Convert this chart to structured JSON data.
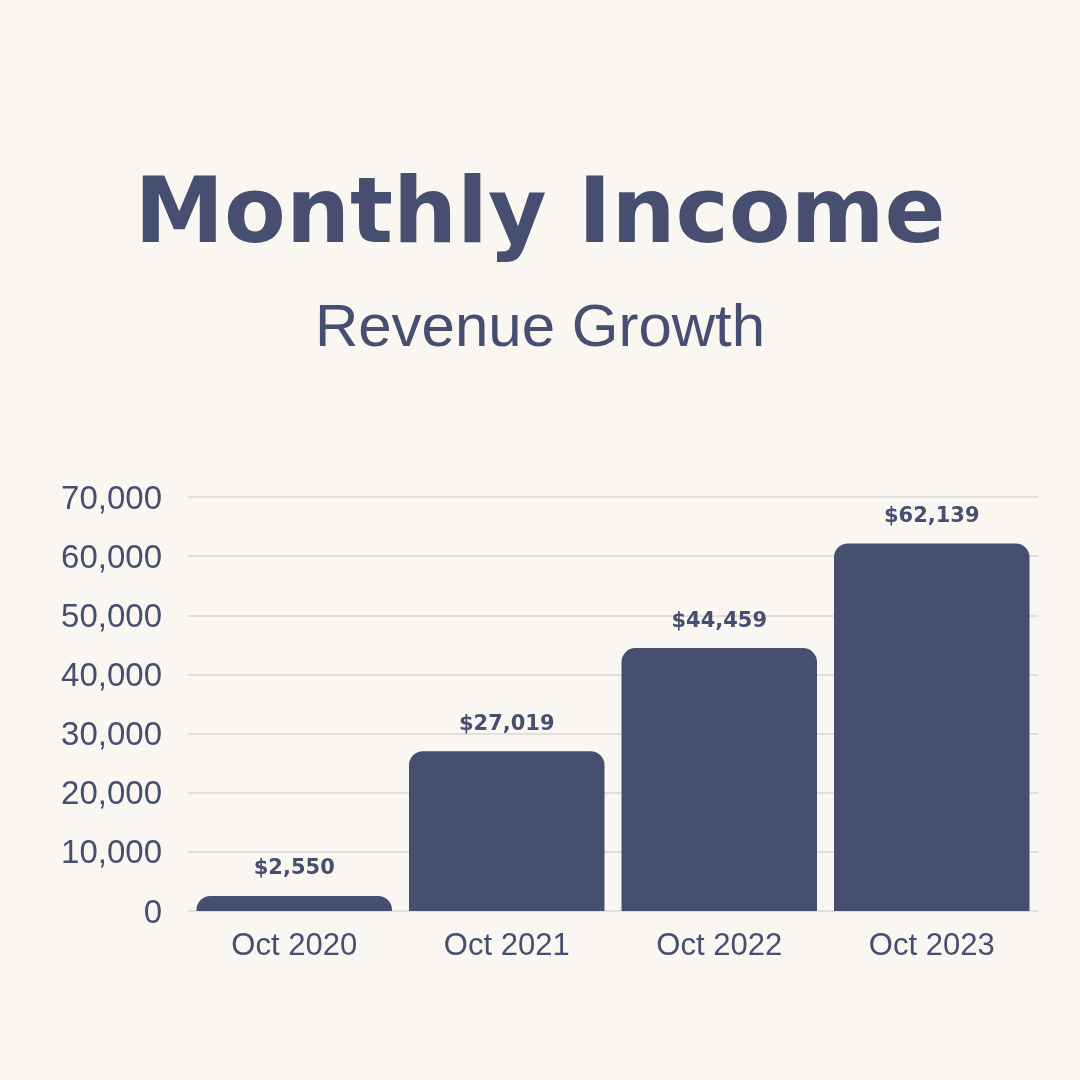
{
  "chart_data": {
    "type": "bar",
    "title": "Monthly Income",
    "subtitle": "Revenue Growth",
    "categories": [
      "Oct 2020",
      "Oct 2021",
      "Oct 2022",
      "Oct 2023"
    ],
    "values": [
      2550,
      27019,
      44459,
      62139
    ],
    "value_labels": [
      "$2,550",
      "$27,019",
      "$44,459",
      "$62,139"
    ],
    "color": "#474f70",
    "ylim": [
      0,
      70000
    ],
    "yticks": [
      {
        "value": 0,
        "label": "0"
      },
      {
        "value": 10000,
        "label": "10,000"
      },
      {
        "value": 20000,
        "label": "20,000"
      },
      {
        "value": 30000,
        "label": "30,000"
      },
      {
        "value": 40000,
        "label": "40,000"
      },
      {
        "value": 50000,
        "label": "50,000"
      },
      {
        "value": 60000,
        "label": "60,000"
      },
      {
        "value": 70000,
        "label": "70,000"
      }
    ],
    "grid": "y"
  }
}
